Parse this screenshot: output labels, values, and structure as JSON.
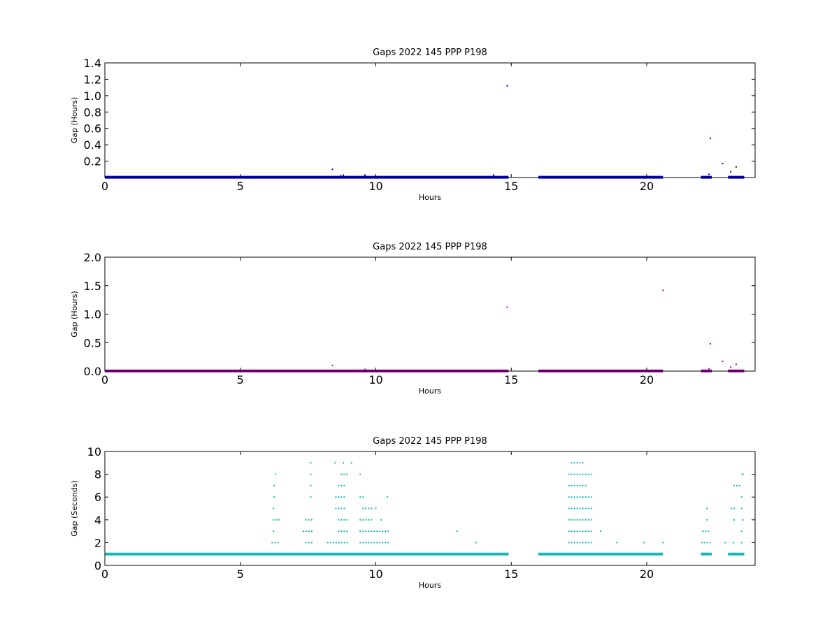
{
  "chart_data": [
    {
      "type": "scatter",
      "title": "Gaps 2022 145 PPP  P198",
      "xlabel": "Hours",
      "ylabel": "Gap (Hours)",
      "xlim": [
        0,
        24
      ],
      "ylim": [
        0,
        1.4
      ],
      "xticks": [
        "0",
        "5",
        "10",
        "15",
        "20"
      ],
      "yticks": [
        "0.2",
        "0.4",
        "0.6",
        "0.8",
        "1.0",
        "1.2",
        "1.4"
      ],
      "color": "#0000cc",
      "baseline_runs": [
        [
          0,
          14.9
        ],
        [
          16.0,
          20.6
        ],
        [
          22.0,
          22.4
        ],
        [
          23.0,
          23.6
        ]
      ],
      "baseline_value": 0.003,
      "outliers": [
        {
          "x": 8.4,
          "y": 0.1
        },
        {
          "x": 8.7,
          "y": 0.02
        },
        {
          "x": 8.8,
          "y": 0.03
        },
        {
          "x": 9.6,
          "y": 0.03
        },
        {
          "x": 14.35,
          "y": 0.03
        },
        {
          "x": 14.85,
          "y": 1.12
        },
        {
          "x": 22.35,
          "y": 0.48
        },
        {
          "x": 22.8,
          "y": 0.17
        },
        {
          "x": 23.1,
          "y": 0.07
        },
        {
          "x": 23.3,
          "y": 0.13
        },
        {
          "x": 22.3,
          "y": 0.04
        }
      ]
    },
    {
      "type": "scatter",
      "title": "Gaps 2022 145 PPP  P198",
      "xlabel": "Hours",
      "ylabel": "Gap (Hours)",
      "xlim": [
        0,
        24
      ],
      "ylim": [
        0,
        2.0
      ],
      "xticks": [
        "0",
        "5",
        "10",
        "15",
        "20"
      ],
      "yticks": [
        "0.0",
        "0.5",
        "1.0",
        "1.5",
        "2.0"
      ],
      "color": "#aa00aa",
      "baseline_runs": [
        [
          0,
          14.9
        ],
        [
          16.0,
          20.6
        ],
        [
          22.0,
          22.4
        ],
        [
          23.0,
          23.6
        ]
      ],
      "baseline_value": 0.003,
      "outliers": [
        {
          "x": 8.4,
          "y": 0.1
        },
        {
          "x": 9.6,
          "y": 0.03
        },
        {
          "x": 14.85,
          "y": 1.12
        },
        {
          "x": 20.6,
          "y": 1.42
        },
        {
          "x": 22.35,
          "y": 0.48
        },
        {
          "x": 22.8,
          "y": 0.17
        },
        {
          "x": 23.1,
          "y": 0.07
        },
        {
          "x": 23.3,
          "y": 0.12
        },
        {
          "x": 22.3,
          "y": 0.04
        }
      ]
    },
    {
      "type": "scatter",
      "title": "Gaps 2022 145 PPP  P198",
      "xlabel": "Hours",
      "ylabel": "Gap (Seconds)",
      "xlim": [
        0,
        24
      ],
      "ylim": [
        0,
        10
      ],
      "xticks": [
        "0",
        "5",
        "10",
        "15",
        "20"
      ],
      "yticks": [
        "0",
        "2",
        "4",
        "6",
        "8",
        "10"
      ],
      "color": "#1ab5b5",
      "baseline_runs": [
        [
          0,
          14.9
        ],
        [
          16.0,
          20.6
        ],
        [
          22.0,
          22.4
        ],
        [
          23.0,
          23.6
        ]
      ],
      "baseline_value": 1,
      "segments": [
        {
          "y": 2,
          "x": [
            6.15,
            6.45
          ]
        },
        {
          "y": 2,
          "x": [
            7.4,
            7.7
          ]
        },
        {
          "y": 2,
          "x": [
            8.2,
            9.0
          ]
        },
        {
          "y": 2,
          "x": [
            9.4,
            10.5
          ]
        },
        {
          "y": 2,
          "x": [
            17.1,
            18.0
          ]
        },
        {
          "y": 2,
          "x": [
            22.0,
            22.35
          ]
        },
        {
          "y": 3,
          "x": [
            6.2,
            6.3
          ]
        },
        {
          "y": 3,
          "x": [
            7.3,
            7.7
          ]
        },
        {
          "y": 3,
          "x": [
            8.6,
            9.0
          ]
        },
        {
          "y": 3,
          "x": [
            9.4,
            10.5
          ]
        },
        {
          "y": 3,
          "x": [
            17.1,
            18.0
          ]
        },
        {
          "y": 3,
          "x": [
            22.05,
            22.3
          ]
        },
        {
          "y": 4,
          "x": [
            6.2,
            6.45
          ]
        },
        {
          "y": 4,
          "x": [
            7.4,
            7.7
          ]
        },
        {
          "y": 4,
          "x": [
            8.6,
            9.0
          ]
        },
        {
          "y": 4,
          "x": [
            9.4,
            9.9
          ]
        },
        {
          "y": 4,
          "x": [
            17.1,
            18.0
          ]
        },
        {
          "y": 4,
          "x": [
            22.2,
            22.3
          ]
        },
        {
          "y": 4,
          "x": [
            23.2,
            23.3
          ]
        },
        {
          "y": 5,
          "x": [
            6.2,
            6.3
          ]
        },
        {
          "y": 5,
          "x": [
            8.5,
            8.9
          ]
        },
        {
          "y": 5,
          "x": [
            9.5,
            9.9
          ]
        },
        {
          "y": 5,
          "x": [
            17.1,
            18.0
          ]
        },
        {
          "y": 5,
          "x": [
            22.2,
            22.3
          ]
        },
        {
          "y": 5,
          "x": [
            23.1,
            23.3
          ]
        },
        {
          "y": 6,
          "x": [
            8.5,
            8.9
          ]
        },
        {
          "y": 6,
          "x": [
            9.4,
            9.6
          ]
        },
        {
          "y": 6,
          "x": [
            10.4,
            10.5
          ]
        },
        {
          "y": 6,
          "x": [
            17.1,
            18.0
          ]
        },
        {
          "y": 7,
          "x": [
            8.6,
            8.9
          ]
        },
        {
          "y": 7,
          "x": [
            17.1,
            17.8
          ]
        },
        {
          "y": 7,
          "x": [
            23.2,
            23.5
          ]
        },
        {
          "y": 8,
          "x": [
            8.7,
            9.0
          ]
        },
        {
          "y": 8,
          "x": [
            9.4,
            9.5
          ]
        },
        {
          "y": 8,
          "x": [
            17.1,
            18.0
          ]
        },
        {
          "y": 8,
          "x": [
            23.5,
            23.6
          ]
        },
        {
          "y": 9,
          "x": [
            17.2,
            17.7
          ]
        }
      ],
      "outliers": [
        {
          "x": 6.3,
          "y": 8
        },
        {
          "x": 6.25,
          "y": 7
        },
        {
          "x": 6.25,
          "y": 6
        },
        {
          "x": 7.6,
          "y": 9
        },
        {
          "x": 7.6,
          "y": 8
        },
        {
          "x": 7.6,
          "y": 7
        },
        {
          "x": 7.6,
          "y": 6
        },
        {
          "x": 8.5,
          "y": 9
        },
        {
          "x": 8.8,
          "y": 9
        },
        {
          "x": 9.1,
          "y": 9
        },
        {
          "x": 10.0,
          "y": 5
        },
        {
          "x": 10.2,
          "y": 4
        },
        {
          "x": 13.0,
          "y": 3
        },
        {
          "x": 13.7,
          "y": 2
        },
        {
          "x": 18.3,
          "y": 3
        },
        {
          "x": 18.9,
          "y": 2
        },
        {
          "x": 19.9,
          "y": 2
        },
        {
          "x": 20.6,
          "y": 2
        },
        {
          "x": 22.9,
          "y": 2
        },
        {
          "x": 23.2,
          "y": 2
        },
        {
          "x": 23.5,
          "y": 2
        },
        {
          "x": 23.5,
          "y": 3
        },
        {
          "x": 23.55,
          "y": 4
        },
        {
          "x": 23.5,
          "y": 5
        },
        {
          "x": 23.5,
          "y": 6
        },
        {
          "x": 23.55,
          "y": 8
        }
      ]
    }
  ]
}
